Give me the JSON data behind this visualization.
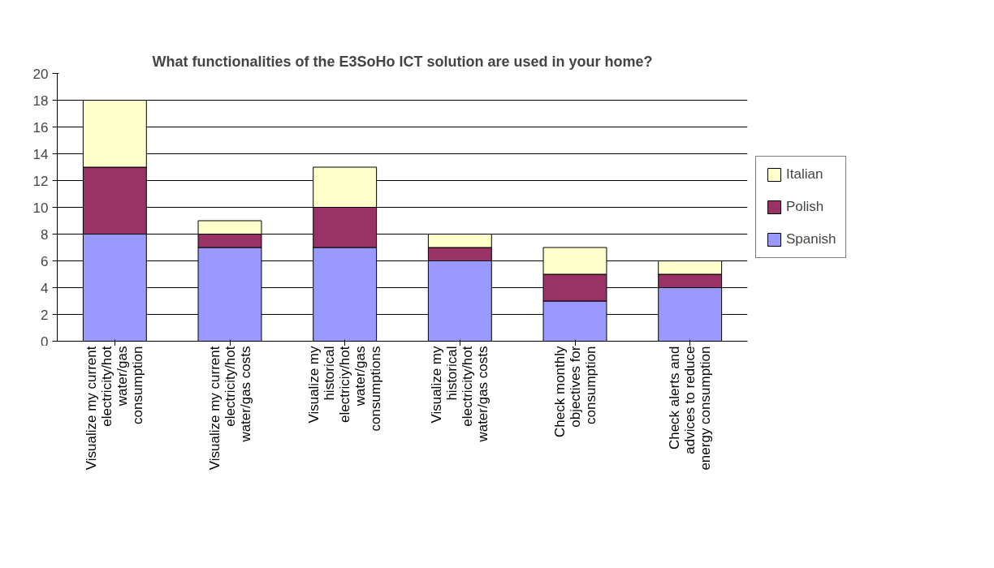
{
  "chart_data": {
    "type": "bar",
    "stacked": true,
    "title": "What functionalities of the E3SoHo ICT solution are used in your home?",
    "categories": [
      "Visualize my current electricity/hot water/gas consumption",
      "Visualize my current electricity/hot water/gas costs",
      "Visualize my historical electriciy/hot water/gas consumptions",
      "Visualize my historical electricity/hot water/gas costs",
      "Check monthly objectives for consumption",
      "Check alerts and advices to reduce energy consumption"
    ],
    "series": [
      {
        "name": "Spanish",
        "color": "#9999ff",
        "values": [
          8,
          7,
          7,
          6,
          3,
          4
        ]
      },
      {
        "name": "Polish",
        "color": "#993366",
        "values": [
          5,
          1,
          3,
          1,
          2,
          1
        ]
      },
      {
        "name": "Italian",
        "color": "#ffffcc",
        "values": [
          5,
          1,
          3,
          1,
          2,
          1
        ]
      }
    ],
    "ylim": [
      0,
      20
    ],
    "yticks": [
      0,
      2,
      4,
      6,
      8,
      10,
      12,
      14,
      16,
      18,
      20
    ],
    "grid": "y",
    "legend": "right"
  }
}
